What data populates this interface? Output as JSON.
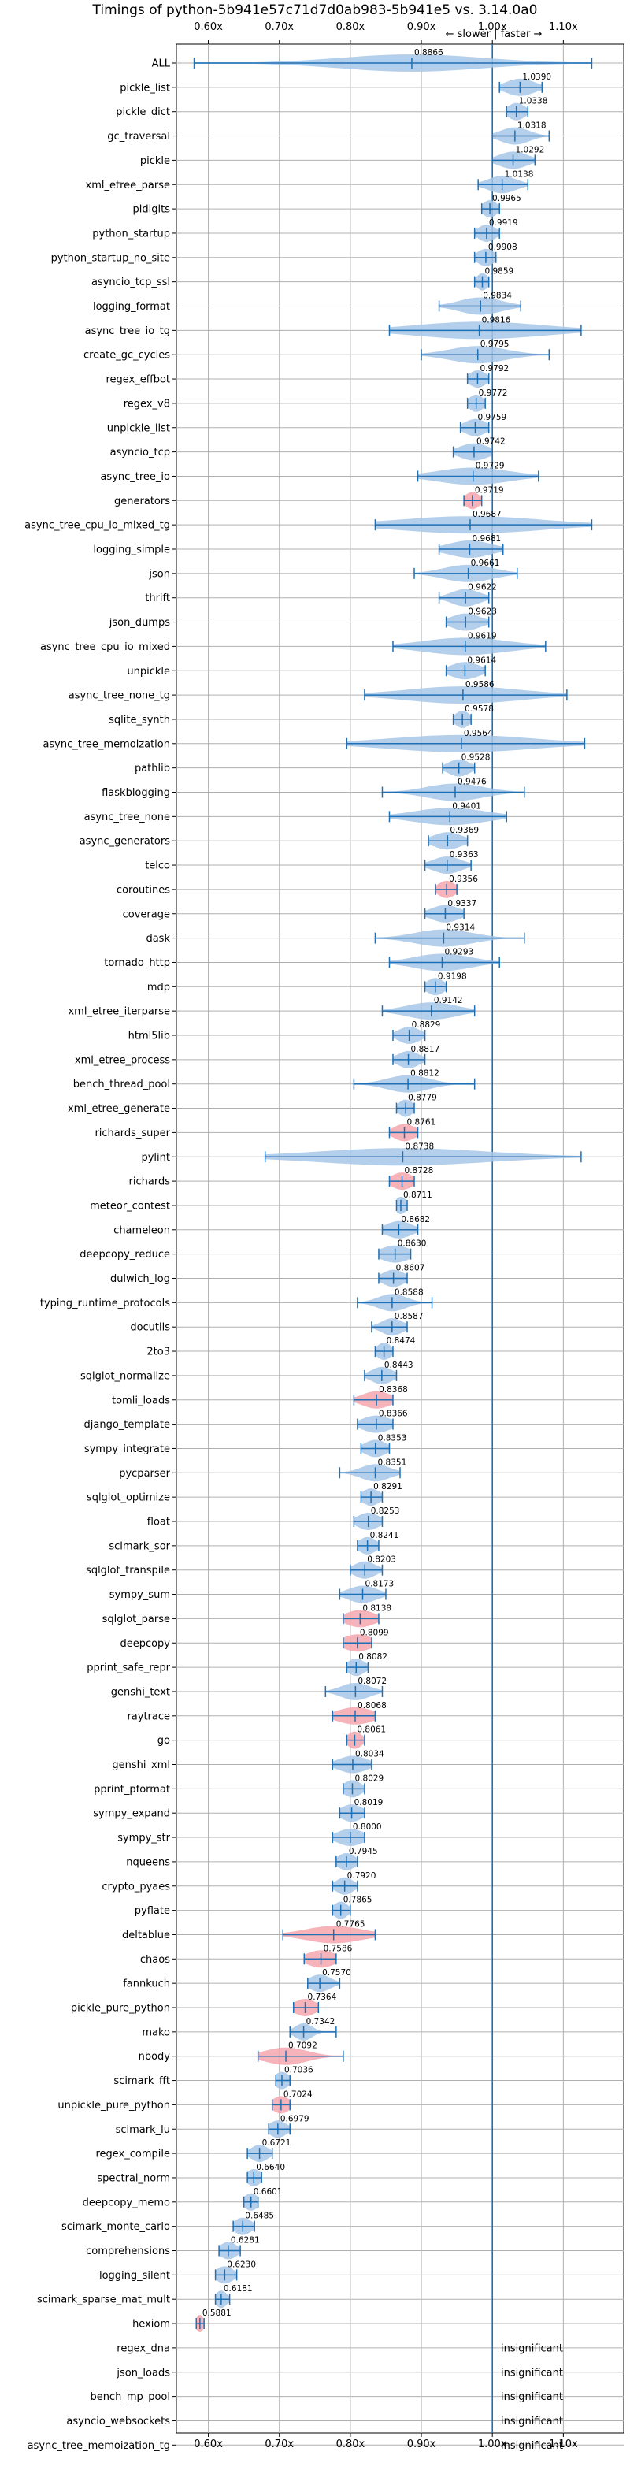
{
  "chart_data": {
    "type": "violin",
    "title": "Timings of python-5b941e57c71d7d0ab983-5b941e5 vs. 3.14.0a0",
    "direction_label": "← slower | faster →",
    "xlim": [
      0.555,
      1.185
    ],
    "x_ticks": [
      0.6,
      0.7,
      0.8,
      0.9,
      1.0,
      1.1
    ],
    "x_tick_labels": [
      "0.60x",
      "0.70x",
      "0.80x",
      "0.90x",
      "1.00x",
      "1.10x"
    ],
    "reference_line": 1.0,
    "grid": true,
    "colors": {
      "faster": "#a7c7e7",
      "slower": "#f4a6ae",
      "line": "#1f6fb4"
    },
    "insignificant_label": "insignificant",
    "benchmarks": [
      {
        "name": "ALL",
        "mean": 0.8866,
        "min": 0.58,
        "max": 1.14,
        "spread": 0.1,
        "slower": false,
        "insignificant": false
      },
      {
        "name": "pickle_list",
        "mean": 1.039,
        "min": 1.01,
        "max": 1.07,
        "spread": 0.02,
        "slower": false,
        "insignificant": false
      },
      {
        "name": "pickle_dict",
        "mean": 1.0338,
        "min": 1.02,
        "max": 1.05,
        "spread": 0.012,
        "slower": false,
        "insignificant": false
      },
      {
        "name": "gc_traversal",
        "mean": 1.0318,
        "min": 1.0,
        "max": 1.08,
        "spread": 0.02,
        "slower": false,
        "insignificant": false
      },
      {
        "name": "pickle",
        "mean": 1.0292,
        "min": 1.0,
        "max": 1.06,
        "spread": 0.02,
        "slower": false,
        "insignificant": false
      },
      {
        "name": "xml_etree_parse",
        "mean": 1.0138,
        "min": 0.98,
        "max": 1.05,
        "spread": 0.02,
        "slower": false,
        "insignificant": false
      },
      {
        "name": "pidigits",
        "mean": 0.9965,
        "min": 0.985,
        "max": 1.01,
        "spread": 0.01,
        "slower": false,
        "insignificant": false
      },
      {
        "name": "python_startup",
        "mean": 0.9919,
        "min": 0.975,
        "max": 1.01,
        "spread": 0.012,
        "slower": false,
        "insignificant": false
      },
      {
        "name": "python_startup_no_site",
        "mean": 0.9908,
        "min": 0.975,
        "max": 1.005,
        "spread": 0.012,
        "slower": false,
        "insignificant": false
      },
      {
        "name": "asyncio_tcp_ssl",
        "mean": 0.9859,
        "min": 0.975,
        "max": 0.995,
        "spread": 0.008,
        "slower": false,
        "insignificant": false
      },
      {
        "name": "logging_format",
        "mean": 0.9834,
        "min": 0.925,
        "max": 1.04,
        "spread": 0.03,
        "slower": false,
        "insignificant": false
      },
      {
        "name": "async_tree_io_tg",
        "mean": 0.9816,
        "min": 0.855,
        "max": 1.125,
        "spread": 0.09,
        "slower": false,
        "insignificant": false
      },
      {
        "name": "create_gc_cycles",
        "mean": 0.9795,
        "min": 0.9,
        "max": 1.08,
        "spread": 0.04,
        "slower": false,
        "insignificant": false
      },
      {
        "name": "regex_effbot",
        "mean": 0.9792,
        "min": 0.965,
        "max": 0.995,
        "spread": 0.012,
        "slower": false,
        "insignificant": false
      },
      {
        "name": "regex_v8",
        "mean": 0.9772,
        "min": 0.965,
        "max": 0.99,
        "spread": 0.01,
        "slower": false,
        "insignificant": false
      },
      {
        "name": "unpickle_list",
        "mean": 0.9759,
        "min": 0.955,
        "max": 0.995,
        "spread": 0.015,
        "slower": false,
        "insignificant": false
      },
      {
        "name": "asyncio_tcp",
        "mean": 0.9742,
        "min": 0.945,
        "max": 1.0,
        "spread": 0.02,
        "slower": false,
        "insignificant": false
      },
      {
        "name": "async_tree_io",
        "mean": 0.9729,
        "min": 0.895,
        "max": 1.065,
        "spread": 0.05,
        "slower": false,
        "insignificant": false
      },
      {
        "name": "generators",
        "mean": 0.9719,
        "min": 0.96,
        "max": 0.985,
        "spread": 0.01,
        "slower": true,
        "insignificant": false
      },
      {
        "name": "async_tree_cpu_io_mixed_tg",
        "mean": 0.9687,
        "min": 0.835,
        "max": 1.14,
        "spread": 0.1,
        "slower": false,
        "insignificant": false
      },
      {
        "name": "logging_simple",
        "mean": 0.9681,
        "min": 0.925,
        "max": 1.015,
        "spread": 0.03,
        "slower": false,
        "insignificant": false
      },
      {
        "name": "json",
        "mean": 0.9661,
        "min": 0.89,
        "max": 1.035,
        "spread": 0.035,
        "slower": false,
        "insignificant": false
      },
      {
        "name": "thrift",
        "mean": 0.9622,
        "min": 0.925,
        "max": 0.995,
        "spread": 0.02,
        "slower": false,
        "insignificant": false
      },
      {
        "name": "json_dumps",
        "mean": 0.9623,
        "min": 0.935,
        "max": 0.995,
        "spread": 0.02,
        "slower": false,
        "insignificant": false
      },
      {
        "name": "async_tree_cpu_io_mixed",
        "mean": 0.9619,
        "min": 0.86,
        "max": 1.075,
        "spread": 0.06,
        "slower": false,
        "insignificant": false
      },
      {
        "name": "unpickle",
        "mean": 0.9614,
        "min": 0.935,
        "max": 0.99,
        "spread": 0.02,
        "slower": false,
        "insignificant": false
      },
      {
        "name": "async_tree_none_tg",
        "mean": 0.9586,
        "min": 0.82,
        "max": 1.105,
        "spread": 0.08,
        "slower": false,
        "insignificant": false
      },
      {
        "name": "sqlite_synth",
        "mean": 0.9578,
        "min": 0.945,
        "max": 0.97,
        "spread": 0.01,
        "slower": false,
        "insignificant": false
      },
      {
        "name": "async_tree_memoization",
        "mean": 0.9564,
        "min": 0.795,
        "max": 1.13,
        "spread": 0.1,
        "slower": false,
        "insignificant": false
      },
      {
        "name": "pathlib",
        "mean": 0.9528,
        "min": 0.93,
        "max": 0.975,
        "spread": 0.015,
        "slower": false,
        "insignificant": false
      },
      {
        "name": "flaskblogging",
        "mean": 0.9476,
        "min": 0.845,
        "max": 1.045,
        "spread": 0.04,
        "slower": false,
        "insignificant": false
      },
      {
        "name": "async_tree_none",
        "mean": 0.9401,
        "min": 0.855,
        "max": 1.02,
        "spread": 0.05,
        "slower": false,
        "insignificant": false
      },
      {
        "name": "async_generators",
        "mean": 0.9369,
        "min": 0.91,
        "max": 0.965,
        "spread": 0.02,
        "slower": false,
        "insignificant": false
      },
      {
        "name": "telco",
        "mean": 0.9363,
        "min": 0.905,
        "max": 0.97,
        "spread": 0.02,
        "slower": false,
        "insignificant": false
      },
      {
        "name": "coroutines",
        "mean": 0.9356,
        "min": 0.92,
        "max": 0.95,
        "spread": 0.012,
        "slower": true,
        "insignificant": false
      },
      {
        "name": "coverage",
        "mean": 0.9337,
        "min": 0.905,
        "max": 0.96,
        "spread": 0.02,
        "slower": false,
        "insignificant": false
      },
      {
        "name": "dask",
        "mean": 0.9314,
        "min": 0.835,
        "max": 1.045,
        "spread": 0.04,
        "slower": false,
        "insignificant": false
      },
      {
        "name": "tornado_http",
        "mean": 0.9293,
        "min": 0.855,
        "max": 1.01,
        "spread": 0.04,
        "slower": false,
        "insignificant": false
      },
      {
        "name": "mdp",
        "mean": 0.9198,
        "min": 0.905,
        "max": 0.935,
        "spread": 0.012,
        "slower": false,
        "insignificant": false
      },
      {
        "name": "xml_etree_iterparse",
        "mean": 0.9142,
        "min": 0.845,
        "max": 0.975,
        "spread": 0.035,
        "slower": false,
        "insignificant": false
      },
      {
        "name": "html5lib",
        "mean": 0.8829,
        "min": 0.86,
        "max": 0.905,
        "spread": 0.015,
        "slower": false,
        "insignificant": false
      },
      {
        "name": "xml_etree_process",
        "mean": 0.8817,
        "min": 0.86,
        "max": 0.905,
        "spread": 0.015,
        "slower": false,
        "insignificant": false
      },
      {
        "name": "bench_thread_pool",
        "mean": 0.8812,
        "min": 0.805,
        "max": 0.975,
        "spread": 0.03,
        "slower": false,
        "insignificant": false
      },
      {
        "name": "xml_etree_generate",
        "mean": 0.8779,
        "min": 0.865,
        "max": 0.89,
        "spread": 0.01,
        "slower": false,
        "insignificant": false
      },
      {
        "name": "richards_super",
        "mean": 0.8761,
        "min": 0.855,
        "max": 0.895,
        "spread": 0.015,
        "slower": true,
        "insignificant": false
      },
      {
        "name": "pylint",
        "mean": 0.8738,
        "min": 0.68,
        "max": 1.125,
        "spread": 0.12,
        "slower": false,
        "insignificant": false
      },
      {
        "name": "richards",
        "mean": 0.8728,
        "min": 0.855,
        "max": 0.89,
        "spread": 0.015,
        "slower": true,
        "insignificant": false
      },
      {
        "name": "meteor_contest",
        "mean": 0.8711,
        "min": 0.865,
        "max": 0.88,
        "spread": 0.008,
        "slower": false,
        "insignificant": false
      },
      {
        "name": "chameleon",
        "mean": 0.8682,
        "min": 0.845,
        "max": 0.895,
        "spread": 0.018,
        "slower": false,
        "insignificant": false
      },
      {
        "name": "deepcopy_reduce",
        "mean": 0.863,
        "min": 0.84,
        "max": 0.885,
        "spread": 0.02,
        "slower": false,
        "insignificant": false
      },
      {
        "name": "dulwich_log",
        "mean": 0.8607,
        "min": 0.84,
        "max": 0.88,
        "spread": 0.015,
        "slower": false,
        "insignificant": false
      },
      {
        "name": "typing_runtime_protocols",
        "mean": 0.8588,
        "min": 0.81,
        "max": 0.915,
        "spread": 0.02,
        "slower": false,
        "insignificant": false
      },
      {
        "name": "docutils",
        "mean": 0.8587,
        "min": 0.83,
        "max": 0.88,
        "spread": 0.015,
        "slower": false,
        "insignificant": false
      },
      {
        "name": "2to3",
        "mean": 0.8474,
        "min": 0.835,
        "max": 0.86,
        "spread": 0.01,
        "slower": false,
        "insignificant": false
      },
      {
        "name": "sqlglot_normalize",
        "mean": 0.8443,
        "min": 0.82,
        "max": 0.865,
        "spread": 0.015,
        "slower": false,
        "insignificant": false
      },
      {
        "name": "tomli_loads",
        "mean": 0.8368,
        "min": 0.805,
        "max": 0.86,
        "spread": 0.02,
        "slower": true,
        "insignificant": false
      },
      {
        "name": "django_template",
        "mean": 0.8366,
        "min": 0.81,
        "max": 0.86,
        "spread": 0.02,
        "slower": false,
        "insignificant": false
      },
      {
        "name": "sympy_integrate",
        "mean": 0.8353,
        "min": 0.815,
        "max": 0.855,
        "spread": 0.015,
        "slower": false,
        "insignificant": false
      },
      {
        "name": "pycparser",
        "mean": 0.8351,
        "min": 0.785,
        "max": 0.87,
        "spread": 0.02,
        "slower": false,
        "insignificant": false
      },
      {
        "name": "sqlglot_optimize",
        "mean": 0.8291,
        "min": 0.815,
        "max": 0.845,
        "spread": 0.012,
        "slower": false,
        "insignificant": false
      },
      {
        "name": "float",
        "mean": 0.8253,
        "min": 0.805,
        "max": 0.845,
        "spread": 0.015,
        "slower": false,
        "insignificant": false
      },
      {
        "name": "scimark_sor",
        "mean": 0.8241,
        "min": 0.81,
        "max": 0.84,
        "spread": 0.012,
        "slower": false,
        "insignificant": false
      },
      {
        "name": "sqlglot_transpile",
        "mean": 0.8203,
        "min": 0.8,
        "max": 0.845,
        "spread": 0.015,
        "slower": false,
        "insignificant": false
      },
      {
        "name": "sympy_sum",
        "mean": 0.8173,
        "min": 0.785,
        "max": 0.85,
        "spread": 0.02,
        "slower": false,
        "insignificant": false
      },
      {
        "name": "sqlglot_parse",
        "mean": 0.8138,
        "min": 0.79,
        "max": 0.84,
        "spread": 0.02,
        "slower": true,
        "insignificant": false
      },
      {
        "name": "deepcopy",
        "mean": 0.8099,
        "min": 0.79,
        "max": 0.83,
        "spread": 0.02,
        "slower": true,
        "insignificant": false
      },
      {
        "name": "pprint_safe_repr",
        "mean": 0.8082,
        "min": 0.795,
        "max": 0.825,
        "spread": 0.012,
        "slower": false,
        "insignificant": false
      },
      {
        "name": "genshi_text",
        "mean": 0.8072,
        "min": 0.765,
        "max": 0.845,
        "spread": 0.02,
        "slower": false,
        "insignificant": false
      },
      {
        "name": "raytrace",
        "mean": 0.8068,
        "min": 0.775,
        "max": 0.835,
        "spread": 0.025,
        "slower": true,
        "insignificant": false
      },
      {
        "name": "go",
        "mean": 0.8061,
        "min": 0.795,
        "max": 0.82,
        "spread": 0.01,
        "slower": true,
        "insignificant": false
      },
      {
        "name": "genshi_xml",
        "mean": 0.8034,
        "min": 0.775,
        "max": 0.83,
        "spread": 0.02,
        "slower": false,
        "insignificant": false
      },
      {
        "name": "pprint_pformat",
        "mean": 0.8029,
        "min": 0.79,
        "max": 0.82,
        "spread": 0.012,
        "slower": false,
        "insignificant": false
      },
      {
        "name": "sympy_expand",
        "mean": 0.8019,
        "min": 0.785,
        "max": 0.82,
        "spread": 0.015,
        "slower": false,
        "insignificant": false
      },
      {
        "name": "sympy_str",
        "mean": 0.8,
        "min": 0.775,
        "max": 0.82,
        "spread": 0.018,
        "slower": false,
        "insignificant": false
      },
      {
        "name": "nqueens",
        "mean": 0.7945,
        "min": 0.78,
        "max": 0.81,
        "spread": 0.012,
        "slower": false,
        "insignificant": false
      },
      {
        "name": "crypto_pyaes",
        "mean": 0.792,
        "min": 0.775,
        "max": 0.81,
        "spread": 0.012,
        "slower": false,
        "insignificant": false
      },
      {
        "name": "pyflate",
        "mean": 0.7865,
        "min": 0.775,
        "max": 0.8,
        "spread": 0.01,
        "slower": false,
        "insignificant": false
      },
      {
        "name": "deltablue",
        "mean": 0.7765,
        "min": 0.705,
        "max": 0.835,
        "spread": 0.04,
        "slower": true,
        "insignificant": false
      },
      {
        "name": "chaos",
        "mean": 0.7586,
        "min": 0.735,
        "max": 0.78,
        "spread": 0.02,
        "slower": true,
        "insignificant": false
      },
      {
        "name": "fannkuch",
        "mean": 0.757,
        "min": 0.74,
        "max": 0.785,
        "spread": 0.015,
        "slower": false,
        "insignificant": false
      },
      {
        "name": "pickle_pure_python",
        "mean": 0.7364,
        "min": 0.72,
        "max": 0.755,
        "spread": 0.015,
        "slower": true,
        "insignificant": false
      },
      {
        "name": "mako",
        "mean": 0.7342,
        "min": 0.715,
        "max": 0.78,
        "spread": 0.012,
        "slower": false,
        "insignificant": false
      },
      {
        "name": "nbody",
        "mean": 0.7092,
        "min": 0.67,
        "max": 0.79,
        "spread": 0.03,
        "slower": true,
        "insignificant": false
      },
      {
        "name": "scimark_fft",
        "mean": 0.7036,
        "min": 0.695,
        "max": 0.715,
        "spread": 0.01,
        "slower": false,
        "insignificant": false
      },
      {
        "name": "unpickle_pure_python",
        "mean": 0.7024,
        "min": 0.69,
        "max": 0.715,
        "spread": 0.012,
        "slower": true,
        "insignificant": false
      },
      {
        "name": "scimark_lu",
        "mean": 0.6979,
        "min": 0.685,
        "max": 0.715,
        "spread": 0.012,
        "slower": false,
        "insignificant": false
      },
      {
        "name": "regex_compile",
        "mean": 0.6721,
        "min": 0.655,
        "max": 0.69,
        "spread": 0.012,
        "slower": false,
        "insignificant": false
      },
      {
        "name": "spectral_norm",
        "mean": 0.664,
        "min": 0.655,
        "max": 0.675,
        "spread": 0.01,
        "slower": false,
        "insignificant": false
      },
      {
        "name": "deepcopy_memo",
        "mean": 0.6601,
        "min": 0.65,
        "max": 0.67,
        "spread": 0.01,
        "slower": false,
        "insignificant": false
      },
      {
        "name": "scimark_monte_carlo",
        "mean": 0.6485,
        "min": 0.635,
        "max": 0.665,
        "spread": 0.012,
        "slower": false,
        "insignificant": false
      },
      {
        "name": "comprehensions",
        "mean": 0.6281,
        "min": 0.615,
        "max": 0.645,
        "spread": 0.012,
        "slower": false,
        "insignificant": false
      },
      {
        "name": "logging_silent",
        "mean": 0.623,
        "min": 0.61,
        "max": 0.64,
        "spread": 0.012,
        "slower": false,
        "insignificant": false
      },
      {
        "name": "scimark_sparse_mat_mult",
        "mean": 0.6181,
        "min": 0.61,
        "max": 0.63,
        "spread": 0.008,
        "slower": false,
        "insignificant": false
      },
      {
        "name": "hexiom",
        "mean": 0.5881,
        "min": 0.583,
        "max": 0.594,
        "spread": 0.005,
        "slower": true,
        "insignificant": false
      },
      {
        "name": "regex_dna",
        "insignificant": true
      },
      {
        "name": "json_loads",
        "insignificant": true
      },
      {
        "name": "bench_mp_pool",
        "insignificant": true
      },
      {
        "name": "asyncio_websockets",
        "insignificant": true
      },
      {
        "name": "async_tree_memoization_tg",
        "insignificant": true
      }
    ]
  }
}
